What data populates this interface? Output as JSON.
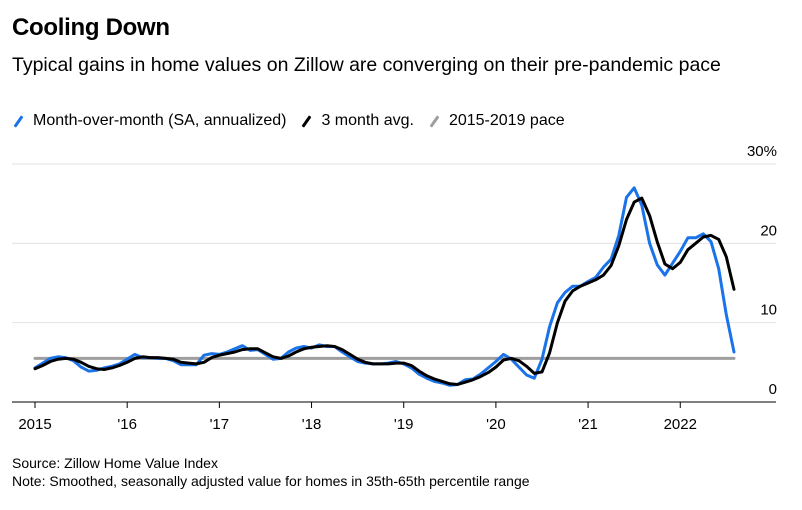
{
  "title": "Cooling Down",
  "subtitle": "Typical gains in home values on Zillow are converging on their pre-pandemic pace",
  "legend": [
    {
      "label": "Month-over-month (SA, annualized)",
      "color": "#1a73e8"
    },
    {
      "label": "3 month avg.",
      "color": "#000000"
    },
    {
      "label": "2015-2019 pace",
      "color": "#9e9e9e"
    }
  ],
  "source": "Source: Zillow Home Value Index",
  "note": "Note: Smoothed, seasonally adjusted value for homes in 35th-65th percentile range",
  "chart_data": {
    "type": "line",
    "x_unit": "year",
    "xlim": [
      2015.0,
      2022.8
    ],
    "ylim": [
      0,
      30
    ],
    "y_ticks": [
      0,
      10,
      20,
      30
    ],
    "y_tick_labels": [
      "0",
      "10",
      "20",
      "30%"
    ],
    "x_ticks": [
      2015,
      2016,
      2017,
      2018,
      2019,
      2020,
      2021,
      2022
    ],
    "x_tick_labels": [
      "2015",
      "'16",
      "'17",
      "'18",
      "'19",
      "'20",
      "'21",
      "2022"
    ],
    "grid": true,
    "legend_position": "top",
    "series": [
      {
        "name": "Month-over-month (SA, annualized)",
        "color": "#1a73e8",
        "x": [
          2015.0,
          2015.083,
          2015.167,
          2015.25,
          2015.333,
          2015.417,
          2015.5,
          2015.583,
          2015.667,
          2015.75,
          2015.833,
          2015.917,
          2016.0,
          2016.083,
          2016.167,
          2016.25,
          2016.333,
          2016.417,
          2016.5,
          2016.583,
          2016.667,
          2016.75,
          2016.833,
          2016.917,
          2017.0,
          2017.083,
          2017.167,
          2017.25,
          2017.333,
          2017.417,
          2017.5,
          2017.583,
          2017.667,
          2017.75,
          2017.833,
          2017.917,
          2018.0,
          2018.083,
          2018.167,
          2018.25,
          2018.333,
          2018.417,
          2018.5,
          2018.583,
          2018.667,
          2018.75,
          2018.833,
          2018.917,
          2019.0,
          2019.083,
          2019.167,
          2019.25,
          2019.333,
          2019.417,
          2019.5,
          2019.583,
          2019.667,
          2019.75,
          2019.833,
          2019.917,
          2020.0,
          2020.083,
          2020.167,
          2020.25,
          2020.333,
          2020.417,
          2020.5,
          2020.583,
          2020.667,
          2020.75,
          2020.833,
          2020.917,
          2021.0,
          2021.083,
          2021.167,
          2021.25,
          2021.333,
          2021.417,
          2021.5,
          2021.583,
          2021.667,
          2021.75,
          2021.833,
          2021.917,
          2022.0,
          2022.083,
          2022.167,
          2022.25,
          2022.333,
          2022.417,
          2022.5,
          2022.583
        ],
        "y": [
          4.3,
          4.9,
          5.5,
          5.7,
          5.6,
          5.2,
          4.4,
          3.9,
          4.0,
          4.3,
          4.5,
          4.8,
          5.4,
          6.0,
          5.6,
          5.6,
          5.5,
          5.5,
          5.2,
          4.7,
          4.7,
          4.7,
          5.9,
          6.1,
          6.0,
          6.3,
          6.7,
          7.1,
          6.5,
          6.6,
          6.0,
          5.4,
          5.5,
          6.3,
          6.8,
          7.0,
          6.8,
          7.2,
          7.0,
          7.0,
          6.3,
          5.7,
          5.1,
          4.9,
          4.8,
          4.8,
          4.9,
          5.1,
          4.8,
          4.3,
          3.5,
          3.0,
          2.6,
          2.4,
          2.1,
          2.2,
          2.8,
          2.9,
          3.5,
          4.3,
          5.1,
          6.0,
          5.4,
          4.4,
          3.4,
          3.0,
          5.4,
          9.5,
          12.5,
          13.8,
          14.6,
          14.6,
          15.2,
          15.7,
          17.0,
          18.0,
          21.0,
          25.8,
          27.0,
          24.8,
          20.0,
          17.3,
          16.0,
          17.5,
          19.0,
          20.7,
          20.7,
          21.2,
          20.2,
          16.8,
          11.0,
          6.3
        ]
      },
      {
        "name": "3 month avg.",
        "color": "#000000",
        "x": [
          2015.0,
          2015.083,
          2015.167,
          2015.25,
          2015.333,
          2015.417,
          2015.5,
          2015.583,
          2015.667,
          2015.75,
          2015.833,
          2015.917,
          2016.0,
          2016.083,
          2016.167,
          2016.25,
          2016.333,
          2016.417,
          2016.5,
          2016.583,
          2016.667,
          2016.75,
          2016.833,
          2016.917,
          2017.0,
          2017.083,
          2017.167,
          2017.25,
          2017.333,
          2017.417,
          2017.5,
          2017.583,
          2017.667,
          2017.75,
          2017.833,
          2017.917,
          2018.0,
          2018.083,
          2018.167,
          2018.25,
          2018.333,
          2018.417,
          2018.5,
          2018.583,
          2018.667,
          2018.75,
          2018.833,
          2018.917,
          2019.0,
          2019.083,
          2019.167,
          2019.25,
          2019.333,
          2019.417,
          2019.5,
          2019.583,
          2019.667,
          2019.75,
          2019.833,
          2019.917,
          2020.0,
          2020.083,
          2020.167,
          2020.25,
          2020.333,
          2020.417,
          2020.5,
          2020.583,
          2020.667,
          2020.75,
          2020.833,
          2020.917,
          2021.0,
          2021.083,
          2021.167,
          2021.25,
          2021.333,
          2021.417,
          2021.5,
          2021.583,
          2021.667,
          2021.75,
          2021.833,
          2021.917,
          2022.0,
          2022.083,
          2022.167,
          2022.25,
          2022.333,
          2022.417,
          2022.5,
          2022.583
        ],
        "y": [
          4.2,
          4.6,
          5.1,
          5.4,
          5.5,
          5.4,
          5.0,
          4.5,
          4.2,
          4.1,
          4.3,
          4.6,
          5.0,
          5.5,
          5.7,
          5.6,
          5.6,
          5.5,
          5.4,
          5.0,
          4.9,
          4.8,
          5.0,
          5.6,
          5.9,
          6.1,
          6.3,
          6.6,
          6.7,
          6.7,
          6.2,
          5.7,
          5.5,
          5.8,
          6.3,
          6.7,
          6.9,
          7.0,
          7.1,
          7.0,
          6.6,
          6.0,
          5.4,
          5.0,
          4.8,
          4.8,
          4.8,
          4.9,
          4.9,
          4.6,
          3.9,
          3.3,
          2.9,
          2.6,
          2.3,
          2.2,
          2.5,
          2.8,
          3.2,
          3.7,
          4.4,
          5.3,
          5.5,
          5.2,
          4.5,
          3.6,
          3.8,
          6.2,
          10.0,
          12.7,
          14.0,
          14.6,
          15.0,
          15.4,
          16.0,
          17.2,
          19.7,
          23.0,
          25.2,
          25.7,
          23.5,
          20.2,
          17.4,
          16.8,
          17.6,
          19.2,
          20.0,
          20.8,
          21.0,
          20.5,
          18.3,
          14.2
        ]
      },
      {
        "name": "2015-2019 pace",
        "color": "#9e9e9e",
        "x": [
          2015.0,
          2022.583
        ],
        "y": [
          5.5,
          5.5
        ]
      }
    ]
  }
}
